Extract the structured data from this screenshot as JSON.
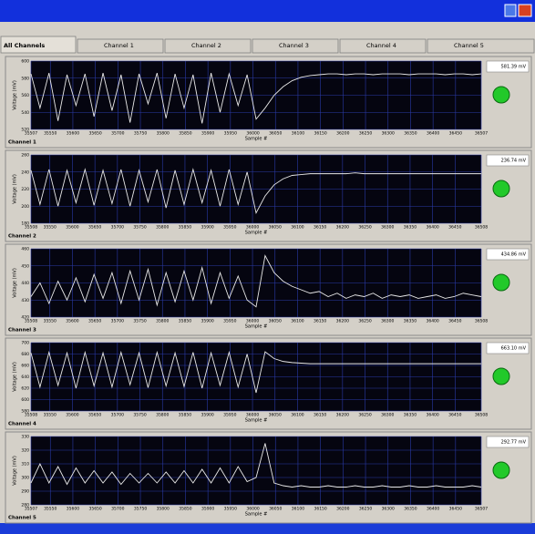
{
  "tabs": [
    "All Channels",
    "Channel 1",
    "Channel 2",
    "Channel 3",
    "Channel 4",
    "Channel 5"
  ],
  "chart_data": [
    {
      "type": "line",
      "title": "Channel 1",
      "xlabel": "Sample #",
      "ylabel": "Voltage (mV)",
      "readout": "581.39 mV",
      "color": "#e8e8e8",
      "grid": true,
      "xlim": [
        35507,
        36507
      ],
      "xticks": [
        35507,
        35550,
        35600,
        35650,
        35700,
        35750,
        35800,
        35850,
        35900,
        35950,
        36000,
        36050,
        36100,
        36150,
        36200,
        36250,
        36300,
        36350,
        36400,
        36450,
        36507
      ],
      "ylim": [
        520,
        600
      ],
      "yticks": [
        520,
        540,
        560,
        580,
        600
      ],
      "x": [
        35507,
        35527,
        35547,
        35567,
        35587,
        35607,
        35627,
        35647,
        35667,
        35687,
        35707,
        35727,
        35747,
        35767,
        35787,
        35807,
        35827,
        35847,
        35867,
        35887,
        35907,
        35927,
        35947,
        35967,
        35987,
        36007,
        36027,
        36047,
        36067,
        36087,
        36107,
        36127,
        36147,
        36167,
        36187,
        36207,
        36227,
        36247,
        36267,
        36287,
        36307,
        36327,
        36347,
        36367,
        36387,
        36407,
        36427,
        36447,
        36467,
        36487,
        36507
      ],
      "values": [
        585,
        545,
        586,
        530,
        584,
        548,
        585,
        535,
        586,
        542,
        584,
        528,
        585,
        550,
        586,
        533,
        585,
        545,
        584,
        527,
        586,
        540,
        585,
        548,
        584,
        532,
        545,
        560,
        570,
        577,
        581,
        583,
        584,
        585,
        585,
        584,
        585,
        585,
        584,
        585,
        585,
        585,
        584,
        585,
        585,
        585,
        584,
        585,
        585,
        584,
        585
      ]
    },
    {
      "type": "line",
      "title": "Channel 2",
      "xlabel": "Sample #",
      "ylabel": "Voltage (mV)",
      "readout": "236.74 mV",
      "color": "#e8e8e8",
      "grid": true,
      "xlim": [
        35508,
        36508
      ],
      "xticks": [
        35508,
        35550,
        35600,
        35650,
        35700,
        35750,
        35800,
        35850,
        35900,
        35950,
        36000,
        36050,
        36100,
        36150,
        36200,
        36250,
        36300,
        36350,
        36400,
        36450,
        36508
      ],
      "ylim": [
        180,
        260
      ],
      "yticks": [
        180,
        200,
        220,
        240,
        260
      ],
      "x": [
        35508,
        35528,
        35548,
        35568,
        35588,
        35608,
        35628,
        35648,
        35668,
        35688,
        35708,
        35728,
        35748,
        35768,
        35788,
        35808,
        35828,
        35848,
        35868,
        35888,
        35908,
        35928,
        35948,
        35968,
        35988,
        36008,
        36028,
        36048,
        36068,
        36088,
        36108,
        36128,
        36148,
        36168,
        36188,
        36208,
        36228,
        36248,
        36268,
        36288,
        36308,
        36328,
        36348,
        36368,
        36388,
        36408,
        36428,
        36448,
        36468,
        36488,
        36508
      ],
      "values": [
        242,
        202,
        243,
        200,
        242,
        204,
        243,
        201,
        242,
        203,
        243,
        200,
        242,
        205,
        243,
        198,
        242,
        202,
        243,
        204,
        242,
        200,
        243,
        202,
        240,
        192,
        212,
        225,
        232,
        236,
        237,
        238,
        238,
        238,
        238,
        238,
        239,
        238,
        238,
        238,
        238,
        238,
        238,
        238,
        238,
        238,
        238,
        238,
        238,
        238,
        238
      ]
    },
    {
      "type": "line",
      "title": "Channel 3",
      "xlabel": "Sample #",
      "ylabel": "Voltage (mV)",
      "readout": "434.86 mV",
      "color": "#e8e8e8",
      "grid": true,
      "xlim": [
        35508,
        36508
      ],
      "xticks": [
        35508,
        35550,
        35600,
        35650,
        35700,
        35750,
        35800,
        35850,
        35900,
        35950,
        36000,
        36050,
        36100,
        36150,
        36200,
        36250,
        36300,
        36350,
        36400,
        36450,
        36508
      ],
      "ylim": [
        420,
        460
      ],
      "yticks": [
        420,
        430,
        440,
        450,
        460
      ],
      "x": [
        35508,
        35528,
        35548,
        35568,
        35588,
        35608,
        35628,
        35648,
        35668,
        35688,
        35708,
        35728,
        35748,
        35768,
        35788,
        35808,
        35828,
        35848,
        35868,
        35888,
        35908,
        35928,
        35948,
        35968,
        35988,
        36008,
        36028,
        36048,
        36068,
        36088,
        36108,
        36128,
        36148,
        36168,
        36188,
        36208,
        36228,
        36248,
        36268,
        36288,
        36308,
        36328,
        36348,
        36368,
        36388,
        36408,
        36428,
        36448,
        36468,
        36488,
        36508
      ],
      "values": [
        432,
        440,
        428,
        441,
        430,
        443,
        429,
        445,
        431,
        446,
        428,
        447,
        430,
        448,
        427,
        446,
        429,
        447,
        430,
        449,
        428,
        446,
        431,
        444,
        430,
        426,
        456,
        446,
        441,
        438,
        436,
        434,
        435,
        432,
        434,
        431,
        433,
        432,
        434,
        431,
        433,
        432,
        433,
        431,
        432,
        433,
        431,
        432,
        434,
        433,
        432
      ]
    },
    {
      "type": "line",
      "title": "Channel 4",
      "xlabel": "Sample #",
      "ylabel": "Voltage (mV)",
      "readout": "663.10 mV",
      "color": "#e8e8e8",
      "grid": true,
      "xlim": [
        35508,
        36508
      ],
      "xticks": [
        35508,
        35550,
        35600,
        35650,
        35700,
        35750,
        35800,
        35850,
        35900,
        35950,
        36000,
        36050,
        36100,
        36150,
        36200,
        36250,
        36300,
        36350,
        36400,
        36450,
        36508
      ],
      "ylim": [
        580,
        700
      ],
      "yticks": [
        580,
        600,
        620,
        640,
        660,
        680,
        700
      ],
      "x": [
        35508,
        35528,
        35548,
        35568,
        35588,
        35608,
        35628,
        35648,
        35668,
        35688,
        35708,
        35728,
        35748,
        35768,
        35788,
        35808,
        35828,
        35848,
        35868,
        35888,
        35908,
        35928,
        35948,
        35968,
        35988,
        36008,
        36028,
        36048,
        36068,
        36088,
        36108,
        36128,
        36148,
        36168,
        36188,
        36208,
        36228,
        36248,
        36268,
        36288,
        36308,
        36328,
        36348,
        36368,
        36388,
        36408,
        36428,
        36448,
        36468,
        36488,
        36508
      ],
      "values": [
        682,
        622,
        683,
        625,
        682,
        620,
        683,
        624,
        682,
        622,
        683,
        626,
        682,
        621,
        683,
        624,
        682,
        623,
        683,
        620,
        682,
        625,
        683,
        622,
        680,
        612,
        684,
        672,
        667,
        665,
        664,
        663,
        663,
        663,
        663,
        663,
        663,
        663,
        663,
        663,
        663,
        663,
        663,
        663,
        663,
        663,
        663,
        663,
        663,
        663,
        663
      ]
    },
    {
      "type": "line",
      "title": "Channel 5",
      "xlabel": "Sample #",
      "ylabel": "Voltage (mV)",
      "readout": "292.77 mV",
      "color": "#e8e8e8",
      "grid": true,
      "xlim": [
        35507,
        36507
      ],
      "xticks": [
        35507,
        35550,
        35600,
        35650,
        35700,
        35750,
        35800,
        35850,
        35900,
        35950,
        36000,
        36050,
        36100,
        36150,
        36200,
        36250,
        36300,
        36350,
        36400,
        36450,
        36507
      ],
      "ylim": [
        280,
        330
      ],
      "yticks": [
        280,
        290,
        300,
        310,
        320,
        330
      ],
      "x": [
        35507,
        35527,
        35547,
        35567,
        35587,
        35607,
        35627,
        35647,
        35667,
        35687,
        35707,
        35727,
        35747,
        35767,
        35787,
        35807,
        35827,
        35847,
        35867,
        35887,
        35907,
        35927,
        35947,
        35967,
        35987,
        36007,
        36027,
        36047,
        36067,
        36087,
        36107,
        36127,
        36147,
        36167,
        36187,
        36207,
        36227,
        36247,
        36267,
        36287,
        36307,
        36327,
        36347,
        36367,
        36387,
        36407,
        36427,
        36447,
        36467,
        36487,
        36507
      ],
      "values": [
        296,
        310,
        296,
        308,
        295,
        307,
        296,
        305,
        296,
        304,
        295,
        303,
        296,
        303,
        296,
        304,
        296,
        305,
        296,
        306,
        296,
        307,
        296,
        308,
        297,
        300,
        325,
        296,
        294,
        293,
        294,
        293,
        293,
        294,
        293,
        293,
        294,
        293,
        293,
        294,
        293,
        293,
        294,
        293,
        293,
        294,
        293,
        293,
        293,
        294,
        293
      ]
    }
  ]
}
